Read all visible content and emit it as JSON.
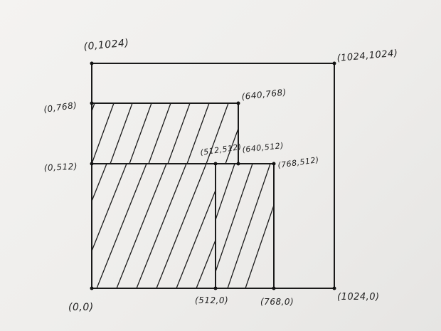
{
  "diagram": {
    "labels": {
      "top_left_outer": "(0,1024)",
      "top_right_outer": "(1024,1024)",
      "left_768": "(0,768)",
      "corner_640_768": "(640,768)",
      "left_512": "(0,512)",
      "mid_512_512": "(512,512)",
      "corner_640_512": "(640,512)",
      "corner_768_512": "(768,512)",
      "origin": "(0,0)",
      "bottom_512": "(512,0)",
      "bottom_768": "(768,0)",
      "bottom_1024": "(1024,0)"
    },
    "colors": {
      "ink": "#1a1a1a",
      "paper": "#f1f0ee"
    }
  }
}
